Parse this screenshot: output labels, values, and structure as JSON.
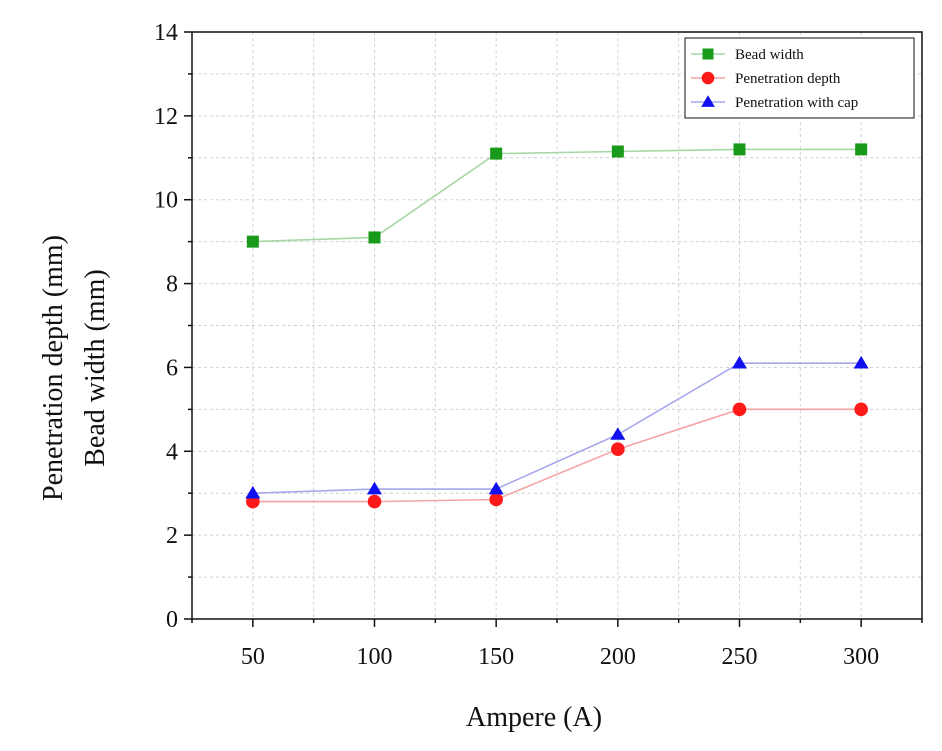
{
  "chart_data": {
    "type": "line",
    "title": "",
    "xlabel": "Ampere (A)",
    "ylabel_lines": [
      "Penetration depth (mm)",
      "Bead width (mm)"
    ],
    "x": [
      50,
      100,
      150,
      200,
      250,
      300
    ],
    "xlim": [
      25,
      325
    ],
    "ylim": [
      0,
      14
    ],
    "xticks": [
      50,
      100,
      150,
      200,
      250,
      300
    ],
    "yticks": [
      0,
      2,
      4,
      6,
      8,
      10,
      12,
      14
    ],
    "grid": true,
    "legend_position": "top-right",
    "series": [
      {
        "name": "Bead width",
        "values": [
          9.0,
          9.1,
          11.1,
          11.15,
          11.2,
          11.2
        ],
        "color": "#1a9a1a",
        "line_color": "#a6d8a6",
        "marker": "square"
      },
      {
        "name": "Penetration depth",
        "values": [
          2.8,
          2.8,
          2.85,
          4.05,
          5.0,
          5.0
        ],
        "color": "#ff1a1a",
        "line_color": "#f4a3a3",
        "marker": "circle"
      },
      {
        "name": "Penetration with cap",
        "values": [
          3.0,
          3.1,
          3.1,
          4.4,
          6.1,
          6.1
        ],
        "color": "#1010ee",
        "line_color": "#a8a8ee",
        "marker": "triangle"
      }
    ]
  }
}
